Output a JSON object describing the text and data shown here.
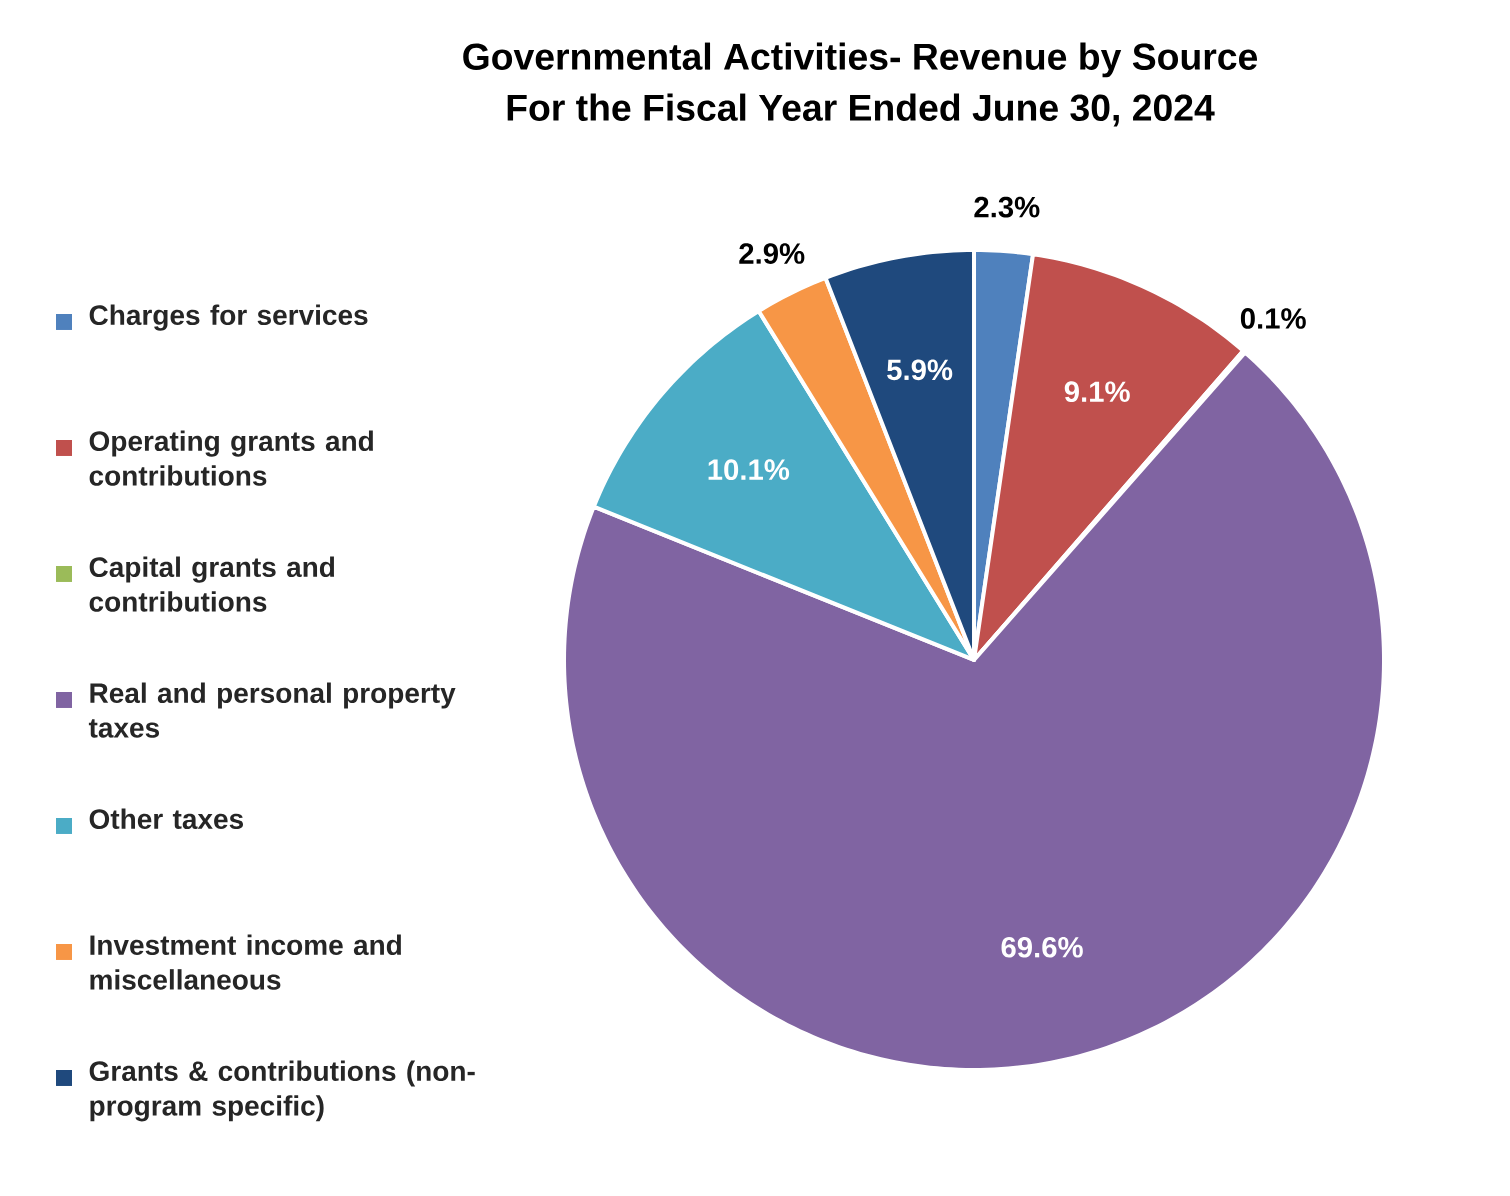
{
  "chart_data": {
    "type": "pie",
    "title": "Governmental Activities- Revenue by Source",
    "subtitle": "For the Fiscal Year Ended June 30, 2024",
    "categories": [
      "Charges for services",
      "Operating grants and contributions",
      "Capital grants and contributions",
      "Real and personal property taxes",
      "Other taxes",
      "Investment income and miscellaneous",
      "Grants & contributions (non-program specific)"
    ],
    "values": [
      2.3,
      9.1,
      0.1,
      69.6,
      10.1,
      2.9,
      5.9
    ],
    "value_labels": [
      "2.3%",
      "9.1%",
      "0.1%",
      "69.6%",
      "10.1%",
      "2.9%",
      "5.9%"
    ],
    "colors": [
      "#4f81bd",
      "#c0504d",
      "#9bbb59",
      "#8064a2",
      "#4bacc6",
      "#f79646",
      "#1f497d"
    ],
    "legend": "left"
  }
}
